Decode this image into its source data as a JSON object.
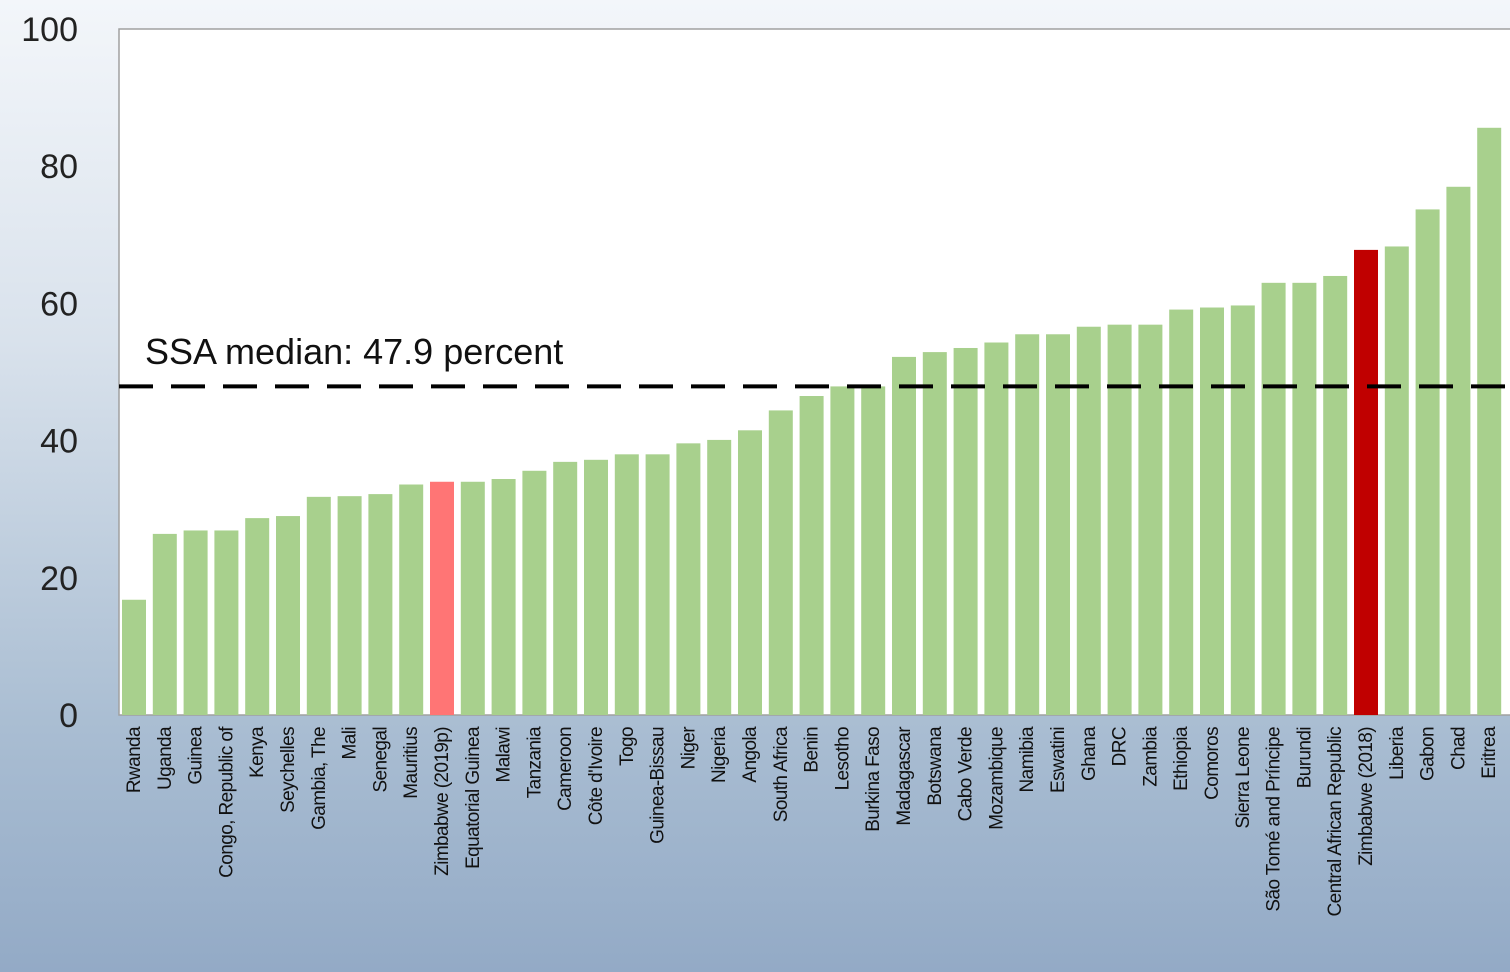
{
  "chart_data": {
    "type": "bar",
    "ylim": [
      0,
      100
    ],
    "yticks": [
      "0",
      "20",
      "40",
      "60",
      "80",
      "100"
    ],
    "categories": [
      "Rwanda",
      "Uganda",
      "Guinea",
      "Congo, Republic of",
      "Kenya",
      "Seychelles",
      "Gambia, The",
      "Mali",
      "Senegal",
      "Mauritius",
      "Zimbabwe (2019p)",
      "Equatorial Guinea",
      "Malawi",
      "Tanzania",
      "Cameroon",
      "Côte d'Ivoire",
      "Togo",
      "Guinea-Bissau",
      "Niger",
      "Nigeria",
      "Angola",
      "South Africa",
      "Benin",
      "Lesotho",
      "Burkina Faso",
      "Madagascar",
      "Botswana",
      "Cabo Verde",
      "Mozambique",
      "Namibia",
      "Eswatini",
      "Ghana",
      "DRC",
      "Zambia",
      "Ethiopia",
      "Comoros",
      "Sierra Leone",
      "São Tomé and Príncipe",
      "Burundi",
      "Central African Republic",
      "Zimbabwe (2018)",
      "Liberia",
      "Gabon",
      "Chad",
      "Eritrea"
    ],
    "values": [
      16.8,
      26.4,
      26.9,
      26.9,
      28.7,
      29.0,
      31.8,
      31.9,
      32.2,
      33.6,
      34.0,
      34.0,
      34.4,
      35.6,
      36.9,
      37.2,
      38.0,
      38.0,
      39.6,
      40.1,
      41.5,
      44.4,
      46.5,
      47.9,
      47.9,
      52.2,
      52.9,
      53.5,
      54.3,
      55.5,
      55.5,
      56.6,
      56.9,
      56.9,
      59.1,
      59.4,
      59.7,
      63.0,
      63.0,
      64.0,
      67.8,
      68.3,
      73.7,
      77.0,
      85.6
    ],
    "colors": {
      "default": "#a8d08d",
      "Zimbabwe (2019p)": "#ff7575",
      "Zimbabwe (2018)": "#c00000"
    },
    "median": {
      "value": 47.9,
      "label": "SSA median: 47.9 percent"
    },
    "grid": false
  }
}
